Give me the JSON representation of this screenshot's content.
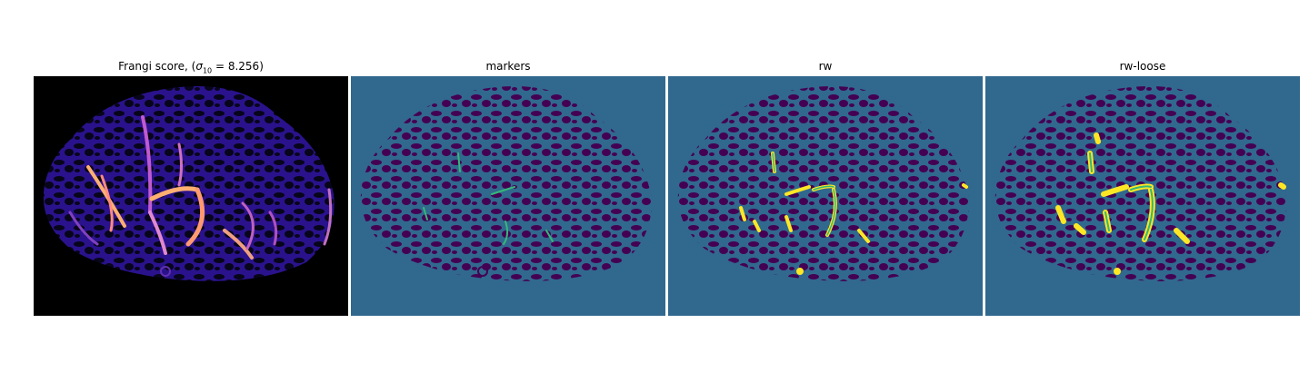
{
  "figure": {
    "panels": [
      {
        "title_prefix": "Frangi score, (",
        "sigma_symbol": "σ",
        "sigma_sub": "10",
        "title_suffix": " = 8.256)"
      },
      {
        "title": "markers"
      },
      {
        "title": "rw"
      },
      {
        "title": "rw-loose"
      }
    ]
  },
  "colors": {
    "black": "#000000",
    "viridis_dark": "#440154",
    "viridis_teal": "#31688e",
    "viridis_green": "#35b779",
    "viridis_yellow": "#fde725",
    "frangi_low": "#3a1aa8",
    "frangi_high": "#ffe08a"
  }
}
